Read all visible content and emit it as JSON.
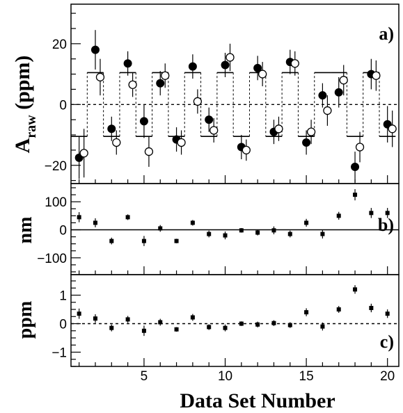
{
  "chart_data": [
    {
      "type": "scatter",
      "panel_label": "a)",
      "ylabel_main": "A",
      "ylabel_sub": "raw",
      "ylabel_unit": " (ppm)",
      "ylim": [
        -26,
        33
      ],
      "yticks": [
        -20,
        0,
        20
      ],
      "ytick_labels": [
        "−20",
        "0",
        "20"
      ],
      "xlim": [
        0.5,
        20.7
      ],
      "zero_line": "dashed",
      "series": [
        {
          "marker": "filled-circle",
          "x": [
            1,
            2,
            3,
            4,
            5,
            6,
            7,
            8,
            9,
            10,
            11,
            12,
            13,
            14,
            15,
            16,
            17,
            18,
            19,
            20
          ],
          "y": [
            -17.5,
            18,
            -8,
            13.5,
            -5.5,
            7,
            -11.5,
            12.5,
            -5,
            13,
            -14,
            12,
            -9,
            14,
            -12.5,
            3,
            4,
            -20.5,
            10,
            -6.5
          ],
          "err": [
            7,
            6.5,
            4,
            4,
            5.5,
            4,
            4,
            4,
            4,
            4,
            4,
            4,
            4,
            4,
            4,
            4,
            5,
            5,
            5,
            6
          ]
        },
        {
          "marker": "open-circle",
          "x": [
            1.3,
            2.3,
            3.3,
            4.3,
            5.3,
            6.3,
            7.3,
            8.3,
            9.3,
            10.3,
            11.3,
            12.3,
            13.3,
            14.3,
            15.3,
            16.3,
            17.3,
            18.3,
            19.3,
            20.3
          ],
          "y": [
            -16,
            9,
            -12.5,
            6.5,
            -15.5,
            9.5,
            -12.5,
            1,
            -8.5,
            15.5,
            -15,
            10,
            -8,
            13.5,
            -9,
            -2,
            8,
            -14,
            9.5,
            -8
          ],
          "err": [
            8,
            6,
            4,
            4,
            5,
            4,
            4,
            4,
            4,
            4.5,
            3.5,
            4,
            4,
            4,
            4,
            5,
            5,
            5,
            5,
            6
          ]
        }
      ],
      "expected_pattern": {
        "style": "step-dashed-verticals",
        "levels": [
          -10.5,
          10.5,
          -10.5,
          10.5,
          -10.5,
          10.5,
          -10.5,
          10.5,
          -10.5,
          10.5,
          -10.5,
          10.5,
          -10.5,
          10.5,
          -10.5,
          10.5,
          10.5,
          -10.5,
          10.5,
          -10.5
        ]
      }
    },
    {
      "type": "scatter",
      "panel_label": "b)",
      "ylabel": "nm",
      "ylim": [
        -160,
        165
      ],
      "yticks": [
        -100,
        0,
        100
      ],
      "ytick_labels": [
        "−100",
        "0",
        "100"
      ],
      "xlim": [
        0.5,
        20.7
      ],
      "zero_line": "solid",
      "series": [
        {
          "marker": "square",
          "x": [
            1,
            2,
            3,
            4,
            5,
            6,
            7,
            8,
            9,
            10,
            11,
            12,
            13,
            14,
            15,
            16,
            17,
            18,
            19,
            20
          ],
          "y": [
            45,
            25,
            -40,
            45,
            -40,
            5,
            -40,
            25,
            -15,
            -20,
            -2,
            -10,
            -2,
            -15,
            25,
            -15,
            50,
            125,
            60,
            60
          ],
          "err": [
            18,
            16,
            12,
            10,
            18,
            12,
            8,
            10,
            12,
            14,
            8,
            10,
            14,
            12,
            14,
            16,
            14,
            20,
            18,
            18
          ]
        }
      ]
    },
    {
      "type": "scatter",
      "panel_label": "c)",
      "ylabel": "ppm",
      "ylim": [
        -1.5,
        1.72
      ],
      "yticks": [
        -1,
        0,
        1
      ],
      "ytick_labels": [
        "−1",
        "0",
        "1"
      ],
      "xlim": [
        0.5,
        20.7
      ],
      "xticks": [
        5,
        10,
        15,
        20
      ],
      "xtick_labels": [
        "5",
        "10",
        "15",
        "20"
      ],
      "xlabel": "Data Set Number",
      "zero_line": "dashed",
      "series": [
        {
          "marker": "square",
          "x": [
            1,
            2,
            3,
            4,
            5,
            6,
            7,
            8,
            9,
            10,
            11,
            12,
            13,
            14,
            15,
            16,
            17,
            18,
            19,
            20
          ],
          "y": [
            0.35,
            0.18,
            -0.15,
            0.15,
            -0.25,
            0.05,
            -0.2,
            0.22,
            -0.12,
            -0.15,
            0,
            -0.03,
            0.02,
            -0.05,
            0.4,
            -0.1,
            0.5,
            1.2,
            0.55,
            0.35
          ],
          "err": [
            0.18,
            0.15,
            0.12,
            0.12,
            0.18,
            0.12,
            0.08,
            0.12,
            0.1,
            0.12,
            0.08,
            0.1,
            0.1,
            0.1,
            0.14,
            0.14,
            0.12,
            0.15,
            0.15,
            0.15
          ]
        }
      ]
    }
  ]
}
